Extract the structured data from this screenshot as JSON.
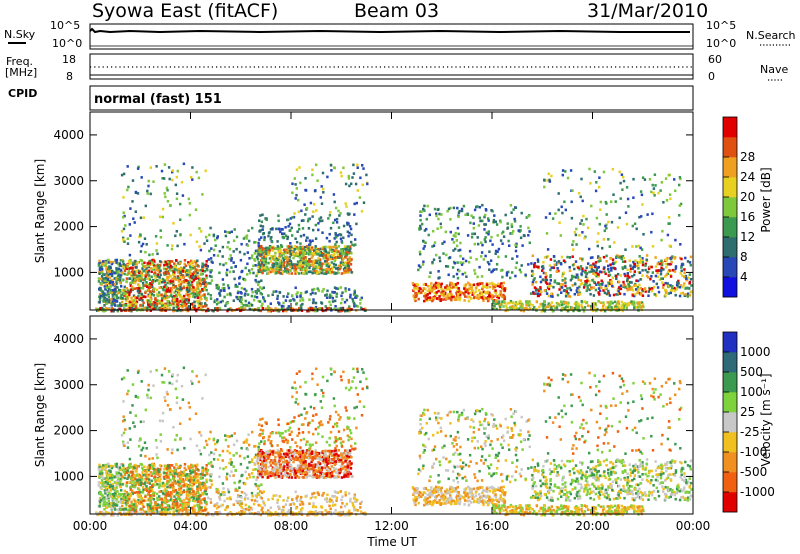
{
  "header": {
    "station": "Syowa East (fitACF)",
    "beam": "Beam 03",
    "date": "31/Mar/2010"
  },
  "top_panels": {
    "nsky_label": "N.Sky",
    "nsky_ticks": [
      "10^5",
      "10^0"
    ],
    "nsearch_label": "N.Search",
    "nsearch_ticks": [
      "10^5",
      "10^0"
    ],
    "freq_label": "Freq.",
    "freq_unit": "[MHz]",
    "freq_ticks": [
      "18",
      "8"
    ],
    "nave_label": "Nave",
    "nave_ticks": [
      "60",
      "0"
    ],
    "cpid_label": "CPID",
    "cpid_value": "normal (fast) 151"
  },
  "chart_data": [
    {
      "type": "heatmap",
      "ylabel": "Slant Range [km]",
      "ytick_labels": [
        "1000",
        "2000",
        "3000",
        "4000"
      ],
      "ylim": [
        180,
        4500
      ],
      "xlim_hours": [
        0,
        24
      ],
      "colorbar": {
        "label": "Power [dB]",
        "tick_labels": [
          "4",
          "8",
          "12",
          "16",
          "20",
          "24",
          "28"
        ],
        "range": [
          0,
          32
        ],
        "colors": [
          "#1010e0",
          "#2848b8",
          "#2e6e6e",
          "#3c9a50",
          "#7ec83c",
          "#e8d020",
          "#f0a020",
          "#e05010",
          "#e00000"
        ]
      }
    },
    {
      "type": "heatmap",
      "ylabel": "Slant Range [km]",
      "ytick_labels": [
        "1000",
        "2000",
        "3000",
        "4000"
      ],
      "ylim": [
        180,
        4500
      ],
      "xlim_hours": [
        0,
        24
      ],
      "xlabel": "Time UT",
      "xtick_labels": [
        "00:00",
        "04:00",
        "08:00",
        "12:00",
        "16:00",
        "20:00",
        "00:00"
      ],
      "colorbar": {
        "label": "Velocity [m s⁻¹]",
        "tick_labels": [
          "1000",
          "500",
          "100",
          "25",
          "-25",
          "-100",
          "-500",
          "-1000"
        ],
        "colors": [
          "#2030c0",
          "#2e6a78",
          "#3c9a50",
          "#7ed23c",
          "#c8c8c8",
          "#f0c020",
          "#f09020",
          "#f06010",
          "#e00000"
        ]
      }
    }
  ]
}
